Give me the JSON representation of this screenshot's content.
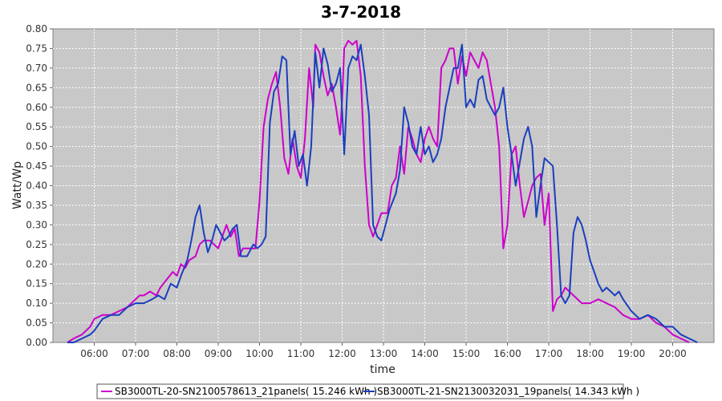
{
  "chart_data": {
    "type": "line",
    "title": "3-7-2018",
    "xlabel": "time",
    "ylabel": "Watt/Wp",
    "xlim": [
      5.0,
      21.0
    ],
    "ylim": [
      0.0,
      0.8
    ],
    "grid": true,
    "legend_position": "bottom",
    "x_ticks": [
      {
        "v": 6,
        "label": "06:00"
      },
      {
        "v": 7,
        "label": "07:00"
      },
      {
        "v": 8,
        "label": "08:00"
      },
      {
        "v": 9,
        "label": "09:00"
      },
      {
        "v": 10,
        "label": "10:00"
      },
      {
        "v": 11,
        "label": "11:00"
      },
      {
        "v": 12,
        "label": "12:00"
      },
      {
        "v": 13,
        "label": "13:00"
      },
      {
        "v": 14,
        "label": "14:00"
      },
      {
        "v": 15,
        "label": "15:00"
      },
      {
        "v": 16,
        "label": "16:00"
      },
      {
        "v": 17,
        "label": "17:00"
      },
      {
        "v": 18,
        "label": "18:00"
      },
      {
        "v": 19,
        "label": "19:00"
      },
      {
        "v": 20,
        "label": "20:00"
      }
    ],
    "y_ticks": [
      {
        "v": 0.0,
        "label": "0.00"
      },
      {
        "v": 0.05,
        "label": "0.05"
      },
      {
        "v": 0.1,
        "label": "0.10"
      },
      {
        "v": 0.15,
        "label": "0.15"
      },
      {
        "v": 0.2,
        "label": "0.20"
      },
      {
        "v": 0.25,
        "label": "0.25"
      },
      {
        "v": 0.3,
        "label": "0.30"
      },
      {
        "v": 0.35,
        "label": "0.35"
      },
      {
        "v": 0.4,
        "label": "0.40"
      },
      {
        "v": 0.45,
        "label": "0.45"
      },
      {
        "v": 0.5,
        "label": "0.50"
      },
      {
        "v": 0.55,
        "label": "0.55"
      },
      {
        "v": 0.6,
        "label": "0.60"
      },
      {
        "v": 0.65,
        "label": "0.65"
      },
      {
        "v": 0.7,
        "label": "0.70"
      },
      {
        "v": 0.75,
        "label": "0.75"
      },
      {
        "v": 0.8,
        "label": "0.80"
      }
    ],
    "series": [
      {
        "name": "SB3000TL-20-SN2100578613_21panels( 15.246 kWh )",
        "color": "#cc00cc",
        "points": [
          [
            5.35,
            0.0
          ],
          [
            5.5,
            0.01
          ],
          [
            5.7,
            0.02
          ],
          [
            5.9,
            0.04
          ],
          [
            6.0,
            0.06
          ],
          [
            6.2,
            0.07
          ],
          [
            6.4,
            0.07
          ],
          [
            6.6,
            0.08
          ],
          [
            6.8,
            0.09
          ],
          [
            7.0,
            0.11
          ],
          [
            7.1,
            0.12
          ],
          [
            7.2,
            0.12
          ],
          [
            7.35,
            0.13
          ],
          [
            7.5,
            0.12
          ],
          [
            7.6,
            0.14
          ],
          [
            7.75,
            0.16
          ],
          [
            7.9,
            0.18
          ],
          [
            8.0,
            0.17
          ],
          [
            8.1,
            0.2
          ],
          [
            8.2,
            0.19
          ],
          [
            8.3,
            0.21
          ],
          [
            8.45,
            0.22
          ],
          [
            8.55,
            0.25
          ],
          [
            8.65,
            0.26
          ],
          [
            8.8,
            0.26
          ],
          [
            8.9,
            0.25
          ],
          [
            9.0,
            0.24
          ],
          [
            9.1,
            0.27
          ],
          [
            9.2,
            0.3
          ],
          [
            9.3,
            0.27
          ],
          [
            9.4,
            0.29
          ],
          [
            9.5,
            0.22
          ],
          [
            9.6,
            0.24
          ],
          [
            9.75,
            0.24
          ],
          [
            9.9,
            0.24
          ],
          [
            10.0,
            0.36
          ],
          [
            10.1,
            0.55
          ],
          [
            10.2,
            0.62
          ],
          [
            10.3,
            0.66
          ],
          [
            10.4,
            0.69
          ],
          [
            10.5,
            0.6
          ],
          [
            10.6,
            0.47
          ],
          [
            10.7,
            0.43
          ],
          [
            10.8,
            0.52
          ],
          [
            10.9,
            0.45
          ],
          [
            11.0,
            0.42
          ],
          [
            11.1,
            0.52
          ],
          [
            11.2,
            0.7
          ],
          [
            11.3,
            0.6
          ],
          [
            11.35,
            0.76
          ],
          [
            11.45,
            0.74
          ],
          [
            11.55,
            0.68
          ],
          [
            11.65,
            0.63
          ],
          [
            11.75,
            0.66
          ],
          [
            11.85,
            0.6
          ],
          [
            11.95,
            0.53
          ],
          [
            12.0,
            0.62
          ],
          [
            12.05,
            0.75
          ],
          [
            12.15,
            0.77
          ],
          [
            12.25,
            0.76
          ],
          [
            12.35,
            0.77
          ],
          [
            12.45,
            0.68
          ],
          [
            12.55,
            0.45
          ],
          [
            12.65,
            0.3
          ],
          [
            12.75,
            0.27
          ],
          [
            12.85,
            0.3
          ],
          [
            12.95,
            0.33
          ],
          [
            13.1,
            0.33
          ],
          [
            13.2,
            0.4
          ],
          [
            13.3,
            0.42
          ],
          [
            13.4,
            0.5
          ],
          [
            13.5,
            0.43
          ],
          [
            13.6,
            0.55
          ],
          [
            13.7,
            0.52
          ],
          [
            13.8,
            0.48
          ],
          [
            13.9,
            0.46
          ],
          [
            14.0,
            0.52
          ],
          [
            14.1,
            0.55
          ],
          [
            14.2,
            0.52
          ],
          [
            14.3,
            0.5
          ],
          [
            14.4,
            0.7
          ],
          [
            14.5,
            0.72
          ],
          [
            14.6,
            0.75
          ],
          [
            14.7,
            0.75
          ],
          [
            14.8,
            0.66
          ],
          [
            14.9,
            0.73
          ],
          [
            15.0,
            0.68
          ],
          [
            15.1,
            0.74
          ],
          [
            15.2,
            0.72
          ],
          [
            15.3,
            0.7
          ],
          [
            15.4,
            0.74
          ],
          [
            15.5,
            0.72
          ],
          [
            15.6,
            0.66
          ],
          [
            15.7,
            0.6
          ],
          [
            15.8,
            0.5
          ],
          [
            15.9,
            0.24
          ],
          [
            16.0,
            0.3
          ],
          [
            16.1,
            0.48
          ],
          [
            16.2,
            0.5
          ],
          [
            16.3,
            0.4
          ],
          [
            16.4,
            0.32
          ],
          [
            16.5,
            0.36
          ],
          [
            16.6,
            0.4
          ],
          [
            16.7,
            0.42
          ],
          [
            16.8,
            0.43
          ],
          [
            16.9,
            0.3
          ],
          [
            17.0,
            0.38
          ],
          [
            17.1,
            0.08
          ],
          [
            17.2,
            0.11
          ],
          [
            17.3,
            0.12
          ],
          [
            17.4,
            0.14
          ],
          [
            17.5,
            0.13
          ],
          [
            17.6,
            0.12
          ],
          [
            17.8,
            0.1
          ],
          [
            18.0,
            0.1
          ],
          [
            18.2,
            0.11
          ],
          [
            18.4,
            0.1
          ],
          [
            18.6,
            0.09
          ],
          [
            18.8,
            0.07
          ],
          [
            19.0,
            0.06
          ],
          [
            19.2,
            0.06
          ],
          [
            19.4,
            0.07
          ],
          [
            19.6,
            0.05
          ],
          [
            19.8,
            0.04
          ],
          [
            20.0,
            0.02
          ],
          [
            20.2,
            0.01
          ],
          [
            20.4,
            0.0
          ]
        ]
      },
      {
        "name": "SB3000TL-21-SN2130032031_19panels( 14.343 kWh )",
        "color": "#1a3fbf",
        "points": [
          [
            5.35,
            0.0
          ],
          [
            5.5,
            0.0
          ],
          [
            5.7,
            0.01
          ],
          [
            5.9,
            0.02
          ],
          [
            6.0,
            0.03
          ],
          [
            6.2,
            0.06
          ],
          [
            6.4,
            0.07
          ],
          [
            6.6,
            0.07
          ],
          [
            6.8,
            0.09
          ],
          [
            7.0,
            0.1
          ],
          [
            7.2,
            0.1
          ],
          [
            7.4,
            0.11
          ],
          [
            7.55,
            0.12
          ],
          [
            7.7,
            0.11
          ],
          [
            7.85,
            0.15
          ],
          [
            8.0,
            0.14
          ],
          [
            8.1,
            0.17
          ],
          [
            8.25,
            0.21
          ],
          [
            8.35,
            0.26
          ],
          [
            8.45,
            0.32
          ],
          [
            8.55,
            0.35
          ],
          [
            8.65,
            0.28
          ],
          [
            8.75,
            0.23
          ],
          [
            8.85,
            0.26
          ],
          [
            8.95,
            0.3
          ],
          [
            9.05,
            0.28
          ],
          [
            9.15,
            0.26
          ],
          [
            9.25,
            0.27
          ],
          [
            9.35,
            0.29
          ],
          [
            9.45,
            0.3
          ],
          [
            9.55,
            0.22
          ],
          [
            9.7,
            0.22
          ],
          [
            9.85,
            0.25
          ],
          [
            9.95,
            0.24
          ],
          [
            10.05,
            0.25
          ],
          [
            10.15,
            0.27
          ],
          [
            10.25,
            0.56
          ],
          [
            10.35,
            0.64
          ],
          [
            10.45,
            0.66
          ],
          [
            10.55,
            0.73
          ],
          [
            10.65,
            0.72
          ],
          [
            10.75,
            0.48
          ],
          [
            10.85,
            0.54
          ],
          [
            10.95,
            0.45
          ],
          [
            11.05,
            0.48
          ],
          [
            11.15,
            0.4
          ],
          [
            11.25,
            0.5
          ],
          [
            11.35,
            0.74
          ],
          [
            11.45,
            0.65
          ],
          [
            11.55,
            0.75
          ],
          [
            11.65,
            0.71
          ],
          [
            11.75,
            0.64
          ],
          [
            11.85,
            0.66
          ],
          [
            11.95,
            0.7
          ],
          [
            12.05,
            0.48
          ],
          [
            12.15,
            0.7
          ],
          [
            12.25,
            0.73
          ],
          [
            12.35,
            0.72
          ],
          [
            12.45,
            0.76
          ],
          [
            12.55,
            0.68
          ],
          [
            12.65,
            0.58
          ],
          [
            12.75,
            0.3
          ],
          [
            12.85,
            0.27
          ],
          [
            12.95,
            0.26
          ],
          [
            13.05,
            0.3
          ],
          [
            13.15,
            0.34
          ],
          [
            13.3,
            0.38
          ],
          [
            13.4,
            0.44
          ],
          [
            13.5,
            0.6
          ],
          [
            13.6,
            0.56
          ],
          [
            13.7,
            0.5
          ],
          [
            13.8,
            0.48
          ],
          [
            13.9,
            0.55
          ],
          [
            14.0,
            0.48
          ],
          [
            14.1,
            0.5
          ],
          [
            14.2,
            0.46
          ],
          [
            14.3,
            0.48
          ],
          [
            14.4,
            0.52
          ],
          [
            14.5,
            0.6
          ],
          [
            14.6,
            0.65
          ],
          [
            14.7,
            0.7
          ],
          [
            14.8,
            0.7
          ],
          [
            14.9,
            0.76
          ],
          [
            15.0,
            0.6
          ],
          [
            15.1,
            0.62
          ],
          [
            15.2,
            0.6
          ],
          [
            15.3,
            0.67
          ],
          [
            15.4,
            0.68
          ],
          [
            15.5,
            0.62
          ],
          [
            15.6,
            0.6
          ],
          [
            15.7,
            0.58
          ],
          [
            15.8,
            0.6
          ],
          [
            15.9,
            0.65
          ],
          [
            16.0,
            0.55
          ],
          [
            16.1,
            0.48
          ],
          [
            16.2,
            0.4
          ],
          [
            16.3,
            0.46
          ],
          [
            16.4,
            0.52
          ],
          [
            16.5,
            0.55
          ],
          [
            16.6,
            0.5
          ],
          [
            16.7,
            0.32
          ],
          [
            16.8,
            0.4
          ],
          [
            16.9,
            0.47
          ],
          [
            17.0,
            0.46
          ],
          [
            17.1,
            0.45
          ],
          [
            17.2,
            0.3
          ],
          [
            17.3,
            0.12
          ],
          [
            17.4,
            0.1
          ],
          [
            17.5,
            0.12
          ],
          [
            17.6,
            0.28
          ],
          [
            17.7,
            0.32
          ],
          [
            17.8,
            0.3
          ],
          [
            17.9,
            0.26
          ],
          [
            18.0,
            0.21
          ],
          [
            18.1,
            0.18
          ],
          [
            18.2,
            0.15
          ],
          [
            18.3,
            0.13
          ],
          [
            18.4,
            0.14
          ],
          [
            18.5,
            0.13
          ],
          [
            18.6,
            0.12
          ],
          [
            18.7,
            0.13
          ],
          [
            18.8,
            0.11
          ],
          [
            19.0,
            0.08
          ],
          [
            19.2,
            0.06
          ],
          [
            19.4,
            0.07
          ],
          [
            19.6,
            0.06
          ],
          [
            19.8,
            0.04
          ],
          [
            20.0,
            0.04
          ],
          [
            20.2,
            0.02
          ],
          [
            20.4,
            0.01
          ],
          [
            20.6,
            0.0
          ]
        ]
      }
    ]
  }
}
